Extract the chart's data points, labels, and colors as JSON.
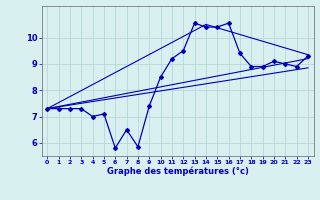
{
  "xlabel": "Graphe des températures (°c)",
  "xlim": [
    -0.5,
    23.5
  ],
  "ylim": [
    5.5,
    11.2
  ],
  "yticks": [
    6,
    7,
    8,
    9,
    10
  ],
  "xticks": [
    0,
    1,
    2,
    3,
    4,
    5,
    6,
    7,
    8,
    9,
    10,
    11,
    12,
    13,
    14,
    15,
    16,
    17,
    18,
    19,
    20,
    21,
    22,
    23
  ],
  "bg_color": "#d8f0f0",
  "line_color": "#0000bb",
  "grid_color": "#b0d4d4",
  "line1_x": [
    0,
    1,
    2,
    3,
    4,
    5,
    6,
    7,
    8,
    9,
    10,
    11,
    12,
    13,
    14,
    15,
    16,
    17,
    18,
    19,
    20,
    21,
    22,
    23
  ],
  "line1_y": [
    7.3,
    7.3,
    7.3,
    7.3,
    7.0,
    7.1,
    5.8,
    6.5,
    5.85,
    7.4,
    8.5,
    9.2,
    9.5,
    10.55,
    10.4,
    10.4,
    10.55,
    9.4,
    8.9,
    8.9,
    9.1,
    9.0,
    8.9,
    9.3
  ],
  "line2_x": [
    0,
    14,
    23
  ],
  "line2_y": [
    7.3,
    10.5,
    9.35
  ],
  "line3_x": [
    0,
    23
  ],
  "line3_y": [
    7.3,
    9.2
  ],
  "line4_x": [
    0,
    23
  ],
  "line4_y": [
    7.3,
    8.85
  ]
}
